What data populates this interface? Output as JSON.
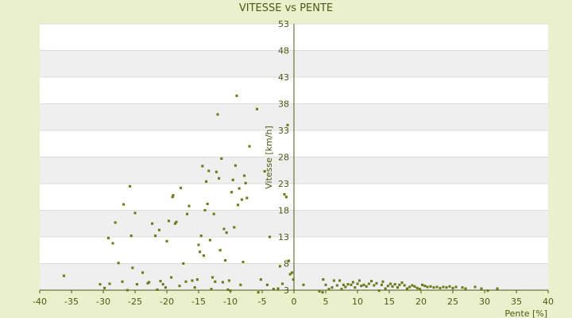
{
  "chart_data": {
    "type": "scatter",
    "title": "VITESSE vs PENTE",
    "xlabel": "Pente [%]",
    "ylabel": "Vitesse [km/h]",
    "xlim": [
      -40,
      40
    ],
    "ylim": [
      3,
      53
    ],
    "xticks": [
      -40,
      -35,
      -30,
      -25,
      -20,
      -15,
      -10,
      -5,
      0,
      5,
      10,
      15,
      20,
      25,
      30,
      35,
      40
    ],
    "yticks": [
      3,
      8,
      13,
      18,
      23,
      28,
      33,
      38,
      43,
      48,
      53
    ],
    "grid": true,
    "colors": {
      "background": "#eaf0cc",
      "band_light": "#ffffff",
      "band_dark": "#efefef",
      "point": "#6b7d12",
      "axis": "#4a5a14"
    },
    "series": [
      {
        "points": [
          [
            -36.2,
            5.7
          ],
          [
            -30.5,
            4.1
          ],
          [
            -29.8,
            3.4
          ],
          [
            -29.2,
            12.8
          ],
          [
            -29.0,
            4.2
          ],
          [
            -28.5,
            11.8
          ],
          [
            -28.1,
            15.7
          ],
          [
            -27.6,
            8.1
          ],
          [
            -27.0,
            4.6
          ],
          [
            -26.8,
            19.1
          ],
          [
            -26.2,
            3.0
          ],
          [
            -25.8,
            22.5
          ],
          [
            -25.6,
            13.2
          ],
          [
            -25.4,
            7.2
          ],
          [
            -25.0,
            17.5
          ],
          [
            -24.7,
            4.1
          ],
          [
            -23.8,
            6.3
          ],
          [
            -23.0,
            4.3
          ],
          [
            -22.8,
            4.5
          ],
          [
            -22.3,
            15.5
          ],
          [
            -21.8,
            13.2
          ],
          [
            -21.5,
            3.1
          ],
          [
            -21.2,
            14.3
          ],
          [
            -21.0,
            4.7
          ],
          [
            -20.6,
            4.1
          ],
          [
            -20.2,
            3.5
          ],
          [
            -20.0,
            12.2
          ],
          [
            -19.7,
            16.0
          ],
          [
            -19.3,
            5.4
          ],
          [
            -19.1,
            20.5
          ],
          [
            -19.0,
            20.8
          ],
          [
            -18.7,
            15.5
          ],
          [
            -18.5,
            15.8
          ],
          [
            -18.0,
            3.8
          ],
          [
            -17.8,
            22.2
          ],
          [
            -17.4,
            8.0
          ],
          [
            -17.0,
            4.6
          ],
          [
            -16.8,
            17.3
          ],
          [
            -16.5,
            18.8
          ],
          [
            -16.0,
            4.8
          ],
          [
            -15.6,
            3.5
          ],
          [
            -15.2,
            5.0
          ],
          [
            -15.0,
            11.5
          ],
          [
            -14.8,
            10.2
          ],
          [
            -14.6,
            13.2
          ],
          [
            -14.4,
            26.3
          ],
          [
            -14.2,
            9.5
          ],
          [
            -14.0,
            18.0
          ],
          [
            -13.8,
            23.4
          ],
          [
            -13.6,
            19.2
          ],
          [
            -13.4,
            25.4
          ],
          [
            -13.2,
            12.4
          ],
          [
            -13.0,
            3.2
          ],
          [
            -12.8,
            5.4
          ],
          [
            -12.6,
            17.3
          ],
          [
            -12.4,
            4.6
          ],
          [
            -12.2,
            25.2
          ],
          [
            -12.0,
            36.0
          ],
          [
            -11.8,
            24.0
          ],
          [
            -11.6,
            10.5
          ],
          [
            -11.4,
            27.7
          ],
          [
            -11.2,
            4.5
          ],
          [
            -11.0,
            14.5
          ],
          [
            -10.8,
            8.6
          ],
          [
            -10.6,
            13.8
          ],
          [
            -10.4,
            3.1
          ],
          [
            -10.2,
            4.8
          ],
          [
            -10.0,
            2.9
          ],
          [
            -9.8,
            21.4
          ],
          [
            -9.6,
            23.7
          ],
          [
            -9.4,
            14.8
          ],
          [
            -9.2,
            26.4
          ],
          [
            -9.0,
            39.5
          ],
          [
            -8.8,
            19.0
          ],
          [
            -8.6,
            22.1
          ],
          [
            -8.4,
            4.0
          ],
          [
            -8.2,
            20.0
          ],
          [
            -8.0,
            8.3
          ],
          [
            -7.8,
            24.5
          ],
          [
            -7.6,
            23.1
          ],
          [
            -7.4,
            20.3
          ],
          [
            -7.0,
            30.0
          ],
          [
            -5.8,
            37.0
          ],
          [
            -5.6,
            2.6
          ],
          [
            -5.2,
            5.0
          ],
          [
            -4.6,
            25.3
          ],
          [
            -4.2,
            4.0
          ],
          [
            -3.8,
            13.0
          ],
          [
            -3.2,
            3.2
          ],
          [
            -2.5,
            3.3
          ],
          [
            -2.2,
            7.5
          ],
          [
            -1.8,
            4.2
          ],
          [
            -1.5,
            21.0
          ],
          [
            -1.2,
            20.5
          ],
          [
            -1.0,
            34.0
          ],
          [
            -0.8,
            8.5
          ],
          [
            -0.6,
            6.0
          ],
          [
            -0.3,
            6.3
          ],
          [
            -0.1,
            5.0
          ],
          [
            1.5,
            4.0
          ],
          [
            4.0,
            2.8
          ],
          [
            4.5,
            2.6
          ],
          [
            4.6,
            5.0
          ],
          [
            5.0,
            4.0
          ],
          [
            5.5,
            3.2
          ],
          [
            6.0,
            3.5
          ],
          [
            6.3,
            4.8
          ],
          [
            6.8,
            3.9
          ],
          [
            7.2,
            4.8
          ],
          [
            7.5,
            3.2
          ],
          [
            7.8,
            4.0
          ],
          [
            8.1,
            3.6
          ],
          [
            8.5,
            4.1
          ],
          [
            9.0,
            4.0
          ],
          [
            9.3,
            4.5
          ],
          [
            9.6,
            3.5
          ],
          [
            10.0,
            4.2
          ],
          [
            10.3,
            4.8
          ],
          [
            10.6,
            3.8
          ],
          [
            11.0,
            4.0
          ],
          [
            11.4,
            3.7
          ],
          [
            11.8,
            4.2
          ],
          [
            12.2,
            4.7
          ],
          [
            12.6,
            3.9
          ],
          [
            13.0,
            4.3
          ],
          [
            13.4,
            2.9
          ],
          [
            13.8,
            4.0
          ],
          [
            14.0,
            4.6
          ],
          [
            14.4,
            3.3
          ],
          [
            14.8,
            3.8
          ],
          [
            15.2,
            4.2
          ],
          [
            15.5,
            3.7
          ],
          [
            15.9,
            4.1
          ],
          [
            16.3,
            3.5
          ],
          [
            16.6,
            4.0
          ],
          [
            17.0,
            4.4
          ],
          [
            17.4,
            3.9
          ],
          [
            17.8,
            3.3
          ],
          [
            18.2,
            3.6
          ],
          [
            18.6,
            3.9
          ],
          [
            19.0,
            3.7
          ],
          [
            19.4,
            3.4
          ],
          [
            19.8,
            3.2
          ],
          [
            20.2,
            4.0
          ],
          [
            20.6,
            3.8
          ],
          [
            21.0,
            3.6
          ],
          [
            21.5,
            3.7
          ],
          [
            22.0,
            3.5
          ],
          [
            22.5,
            3.6
          ],
          [
            23.0,
            3.4
          ],
          [
            23.5,
            3.6
          ],
          [
            24.0,
            3.5
          ],
          [
            24.5,
            3.7
          ],
          [
            25.0,
            3.4
          ],
          [
            25.5,
            3.6
          ],
          [
            26.5,
            3.5
          ],
          [
            27.0,
            3.3
          ],
          [
            28.5,
            3.6
          ],
          [
            29.5,
            3.3
          ],
          [
            30.5,
            2.9
          ],
          [
            32.0,
            3.3
          ]
        ]
      }
    ]
  }
}
